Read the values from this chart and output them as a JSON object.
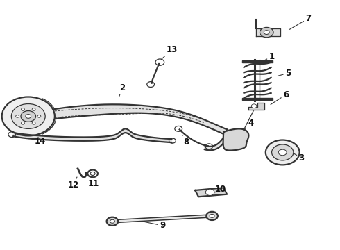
{
  "bg_color": "#ffffff",
  "line_color": "#333333",
  "fig_width": 4.9,
  "fig_height": 3.6,
  "dpi": 100,
  "label_positions": {
    "1": [
      0.8,
      0.775,
      0.768,
      0.752
    ],
    "2": [
      0.36,
      0.648,
      0.348,
      0.608
    ],
    "3": [
      0.888,
      0.368,
      0.862,
      0.388
    ],
    "4": [
      0.738,
      0.508,
      0.712,
      0.472
    ],
    "5": [
      0.848,
      0.708,
      0.812,
      0.695
    ],
    "6": [
      0.842,
      0.622,
      0.792,
      0.578
    ],
    "7": [
      0.908,
      0.928,
      0.848,
      0.88
    ],
    "8": [
      0.548,
      0.432,
      0.538,
      0.458
    ],
    "9": [
      0.478,
      0.096,
      0.418,
      0.113
    ],
    "10": [
      0.648,
      0.242,
      0.628,
      0.226
    ],
    "11": [
      0.275,
      0.265,
      0.272,
      0.292
    ],
    "12": [
      0.215,
      0.258,
      0.228,
      0.298
    ],
    "13": [
      0.505,
      0.802,
      0.47,
      0.758
    ],
    "14": [
      0.118,
      0.435,
      0.108,
      0.458
    ]
  }
}
